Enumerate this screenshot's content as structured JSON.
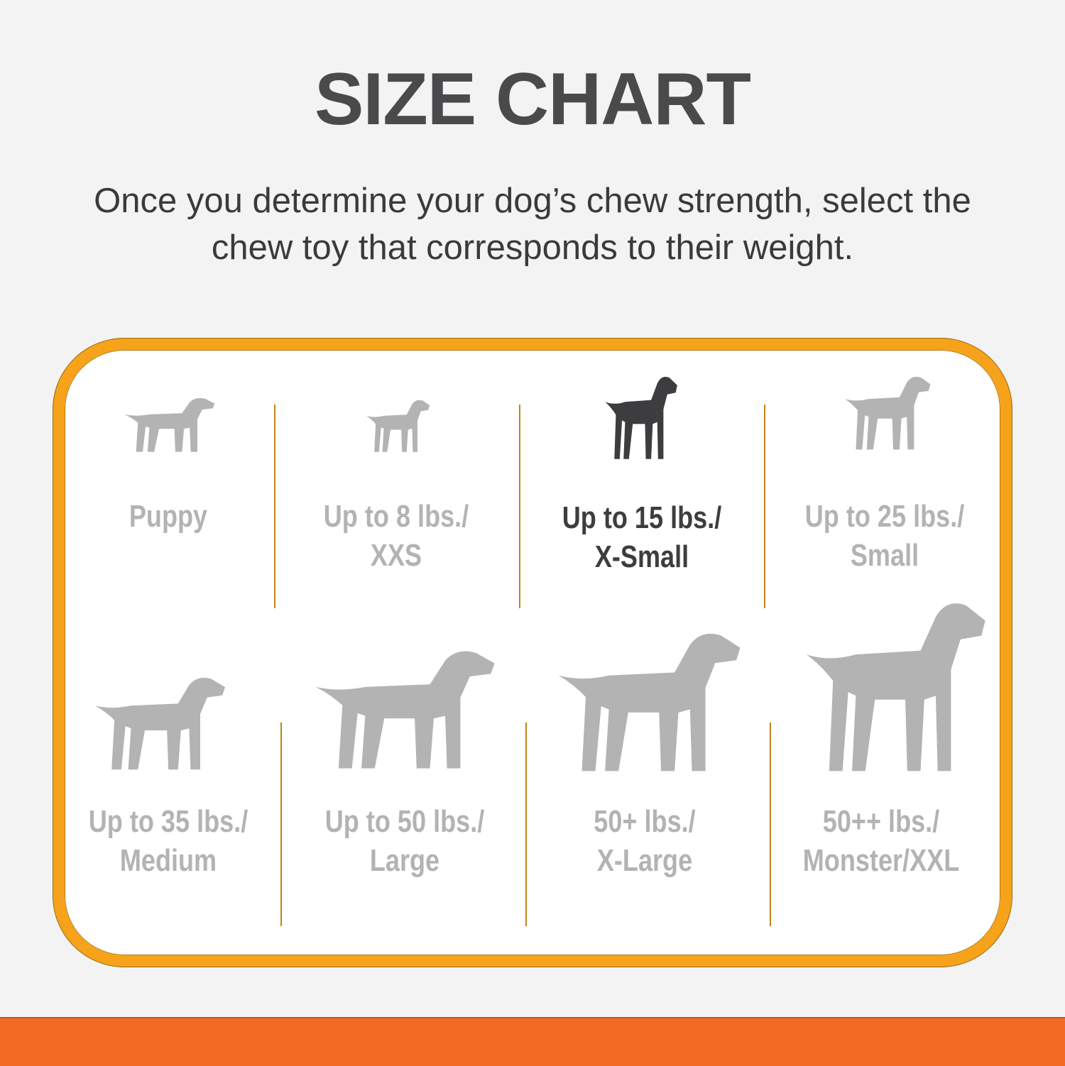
{
  "title": "SIZE CHART",
  "subtitle_lines": [
    "Once you determine your dog’s chew strength, select the",
    "chew toy that corresponds to their weight."
  ],
  "colors": {
    "border": "#f7a21b",
    "bottom_bar": "#f26b25",
    "inactive": "#b3b3b3",
    "active": "#3d3d40"
  },
  "sizes": [
    {
      "line1": "Puppy",
      "line2": "",
      "icon": "puppy-icon",
      "active": false
    },
    {
      "line1": "Up to 8 lbs./",
      "line2": "XXS",
      "icon": "chihuahua-icon",
      "active": false
    },
    {
      "line1": "Up to 15 lbs./",
      "line2": "X-Small",
      "icon": "toy-terrier-icon",
      "active": true
    },
    {
      "line1": "Up to 25 lbs./",
      "line2": "Small",
      "icon": "terrier-icon",
      "active": false
    },
    {
      "line1": "Up to 35 lbs./",
      "line2": "Medium",
      "icon": "beagle-icon",
      "active": false
    },
    {
      "line1": "Up to 50 lbs./",
      "line2": "Large",
      "icon": "retriever-icon",
      "active": false
    },
    {
      "line1": "50+ lbs./",
      "line2": "X-Large",
      "icon": "shepherd-icon",
      "active": false
    },
    {
      "line1": "50++ lbs./",
      "line2": "Monster/XXL",
      "icon": "great-dane-icon",
      "active": false
    }
  ]
}
